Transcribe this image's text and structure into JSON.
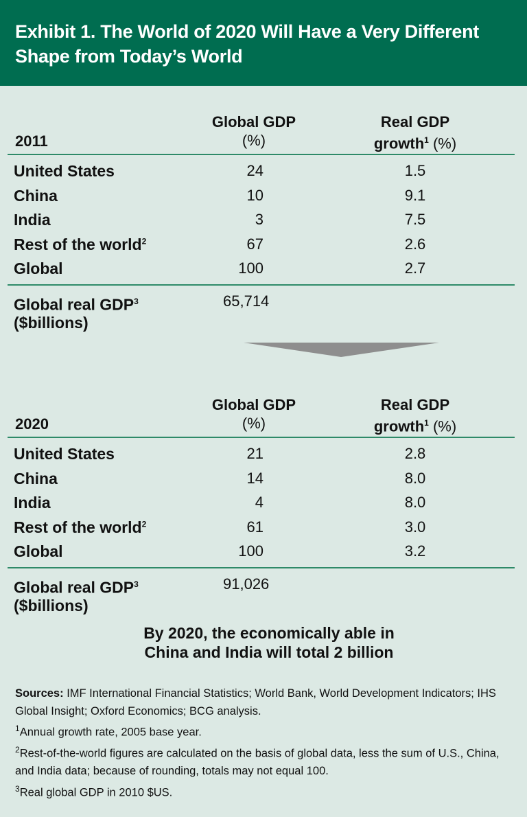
{
  "title": "Exhibit 1. The World of 2020 Will Have a Very Different Shape from Today’s World",
  "columns": {
    "global_gdp": "Global GDP",
    "global_gdp_unit": "(%)",
    "growth_top": "Real GDP",
    "growth": "growth",
    "growth_sup": "1",
    "growth_unit": "(%)"
  },
  "chart_data": {
    "type": "table",
    "tables": [
      {
        "year": "2011",
        "rows": [
          {
            "label": "United States",
            "sup": "",
            "share": "24",
            "growth": "1.5"
          },
          {
            "label": "China",
            "sup": "",
            "share": "10",
            "growth": "9.1"
          },
          {
            "label": "India",
            "sup": "",
            "share": "3",
            "growth": "7.5"
          },
          {
            "label": "Rest of the world",
            "sup": "2",
            "share": "67",
            "growth": "2.6"
          },
          {
            "label": "Global",
            "sup": "",
            "share": "100",
            "growth": "2.7"
          }
        ],
        "gdp_label": "Global real GDP",
        "gdp_sup": "3",
        "gdp_unit": "($billions)",
        "gdp_value": "65,714"
      },
      {
        "year": "2020",
        "rows": [
          {
            "label": "United States",
            "sup": "",
            "share": "21",
            "growth": "2.8"
          },
          {
            "label": "China",
            "sup": "",
            "share": "14",
            "growth": "8.0"
          },
          {
            "label": "India",
            "sup": "",
            "share": "4",
            "growth": "8.0"
          },
          {
            "label": "Rest of the world",
            "sup": "2",
            "share": "61",
            "growth": "3.0"
          },
          {
            "label": "Global",
            "sup": "",
            "share": "100",
            "growth": "3.2"
          }
        ],
        "gdp_label": "Global real GDP",
        "gdp_sup": "3",
        "gdp_unit": "($billions)",
        "gdp_value": "91,026"
      }
    ]
  },
  "message": [
    "By 2020, the economically able in",
    "China and India will total 2 billion"
  ],
  "footnotes": {
    "sources_label": "Sources:",
    "sources": " IMF International Financial Statistics; World Bank, World Development Indicators; IHS Global Insight; Oxford Economics; BCG analysis.",
    "notes": [
      {
        "sup": "1",
        "text": "Annual growth rate, 2005 base year."
      },
      {
        "sup": "2",
        "text": "Rest-of-the-world figures are calculated on the basis of global data, less the sum of U.S., China, and India data; because of rounding, totals may not equal 100."
      },
      {
        "sup": "3",
        "text": "Real global GDP in 2010 $US."
      }
    ]
  },
  "colors": {
    "header": "#006d50",
    "background": "#dce9e4",
    "rule": "#2e8a68",
    "arrow": "#8e8e8e"
  }
}
